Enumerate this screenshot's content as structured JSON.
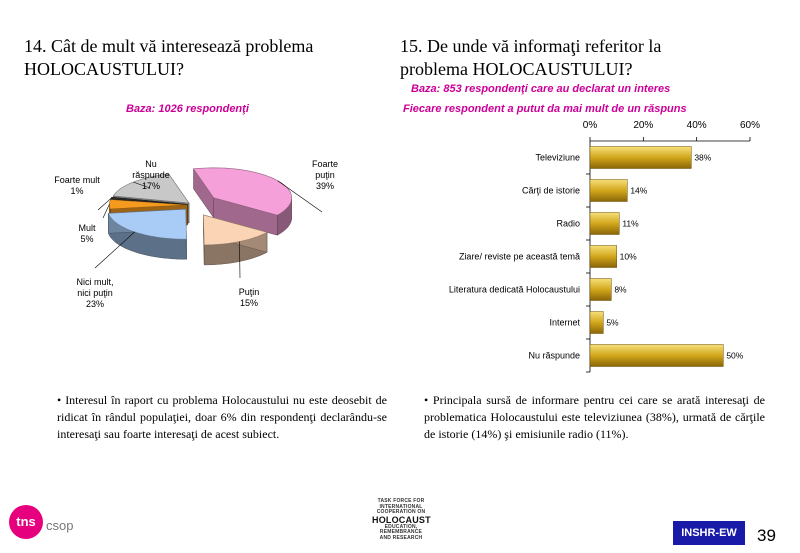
{
  "left_title_line1": "14. Cât de mult vă interesează problema",
  "left_title_line2": "HOLOCAUSTULUI?",
  "left_base": "Baza: 1026 respondenţi",
  "right_title_line1": "15. De unde vă informaţi referitor la",
  "right_title_line2": "problema HOLOCAUSTULUI?",
  "right_base": "Baza: 853 respondenţi care au declarat un interes",
  "right_note": "Fiecare respondent a putut da mai mult de un răspuns",
  "left_bullet": "• Interesul în raport cu problema Holocaustului nu este deosebit de ridicat în rândul populaţiei, doar 6% din respondenţi declarându-se interesaţi sau foarte interesaţi de acest subiect.",
  "right_bullet": "• Principala sursă de informare pentru cei care se arată interesaţi de problematica Holocaustului este televiziunea (38%), urmată de cărţile de istorie (14%) şi emisiunile radio (11%).",
  "footer": {
    "logo_tns": "tns",
    "logo_csop": "csop",
    "tf_small": [
      "TASK FORCE FOR",
      "INTERNATIONAL",
      "COOPERATION ON"
    ],
    "tf_big": "HOLOCAUST",
    "tf_small2": [
      "EDUCATION,",
      "REMEMBRANCE",
      "AND RESEARCH"
    ],
    "badge": "INSHR-EW",
    "page_number": "39"
  },
  "colors": {
    "accent_pink": "#cc0099",
    "tns_magenta": "#e6007e",
    "badge_blue": "#1a1aa8",
    "bar_gold": "#c8a018"
  },
  "chart_data": [
    {
      "type": "pie",
      "slices": [
        {
          "label_lines": [
            "Foarte",
            "puţin",
            "39%"
          ],
          "value": 39,
          "color": "#f5a0d8"
        },
        {
          "label_lines": [
            "Puţin",
            "15%"
          ],
          "value": 15,
          "color": "#fbd3b5"
        },
        {
          "label_lines": [
            "Nici mult,",
            "nici puţin",
            "23%"
          ],
          "value": 23,
          "color": "#a8ccf5"
        },
        {
          "label_lines": [
            "Mult",
            "5%"
          ],
          "value": 5,
          "color": "#f39a1f"
        },
        {
          "label_lines": [
            "Foarte mult",
            "1%"
          ],
          "value": 1,
          "color": "#2e2e2e"
        },
        {
          "label_lines": [
            "Nu",
            "răspunde",
            "17%"
          ],
          "value": 17,
          "color": "#c8c8c8"
        }
      ]
    },
    {
      "type": "bar",
      "orientation": "horizontal",
      "categories": [
        "Televiziune",
        "Cărţi de istorie",
        "Radio",
        "Ziare/ reviste pe această temă",
        "Literatura dedicată Holocaustului",
        "Internet",
        "Nu răspunde"
      ],
      "values": [
        38,
        14,
        11,
        10,
        8,
        5,
        50
      ],
      "value_labels": [
        "38%",
        "14%",
        "11%",
        "10%",
        "8%",
        "5%",
        "50%"
      ],
      "xlim": [
        0,
        60
      ],
      "ticks": [
        "0%",
        "20%",
        "40%",
        "60%"
      ],
      "grid": false
    }
  ]
}
